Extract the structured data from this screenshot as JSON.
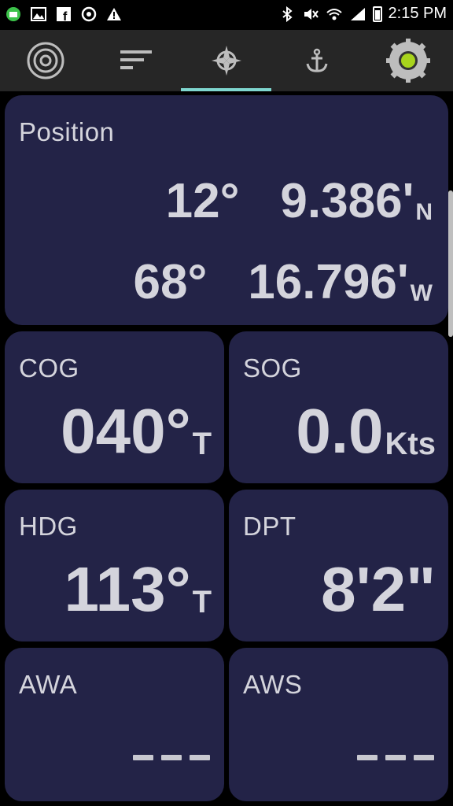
{
  "status_bar": {
    "time": "2:15 PM",
    "left_icons": [
      "app-notification-icon",
      "image-icon",
      "facebook-icon",
      "sync-icon",
      "warning-icon"
    ],
    "right_icons": [
      "bluetooth-icon",
      "mute-icon",
      "wifi-icon",
      "signal-icon",
      "battery-icon"
    ]
  },
  "nav": {
    "tabs": [
      {
        "icon": "radar-icon",
        "active": false
      },
      {
        "icon": "list-icon",
        "active": false
      },
      {
        "icon": "compass-icon",
        "active": true
      },
      {
        "icon": "anchor-icon",
        "active": false
      },
      {
        "icon": "status-gear-icon",
        "active": false
      }
    ],
    "accent": "#7fd6cf"
  },
  "position": {
    "label": "Position",
    "lat_deg": "12°",
    "lat_min": "9.386'",
    "lat_hem": "N",
    "lon_deg": "68°",
    "lon_min": "16.796'",
    "lon_hem": "W"
  },
  "cog": {
    "label": "COG",
    "value": "040°",
    "unit": "T"
  },
  "sog": {
    "label": "SOG",
    "value": "0.0",
    "unit": "Kts"
  },
  "hdg": {
    "label": "HDG",
    "value": "113°",
    "unit": "T"
  },
  "dpt": {
    "label": "DPT",
    "value": "8'2\"",
    "unit": ""
  },
  "awa": {
    "label": "AWA",
    "value": "---"
  },
  "aws": {
    "label": "AWS",
    "value": "---"
  },
  "colors": {
    "card_bg": "#232347",
    "text": "#d4d4dc",
    "nav_bg": "#262626"
  }
}
